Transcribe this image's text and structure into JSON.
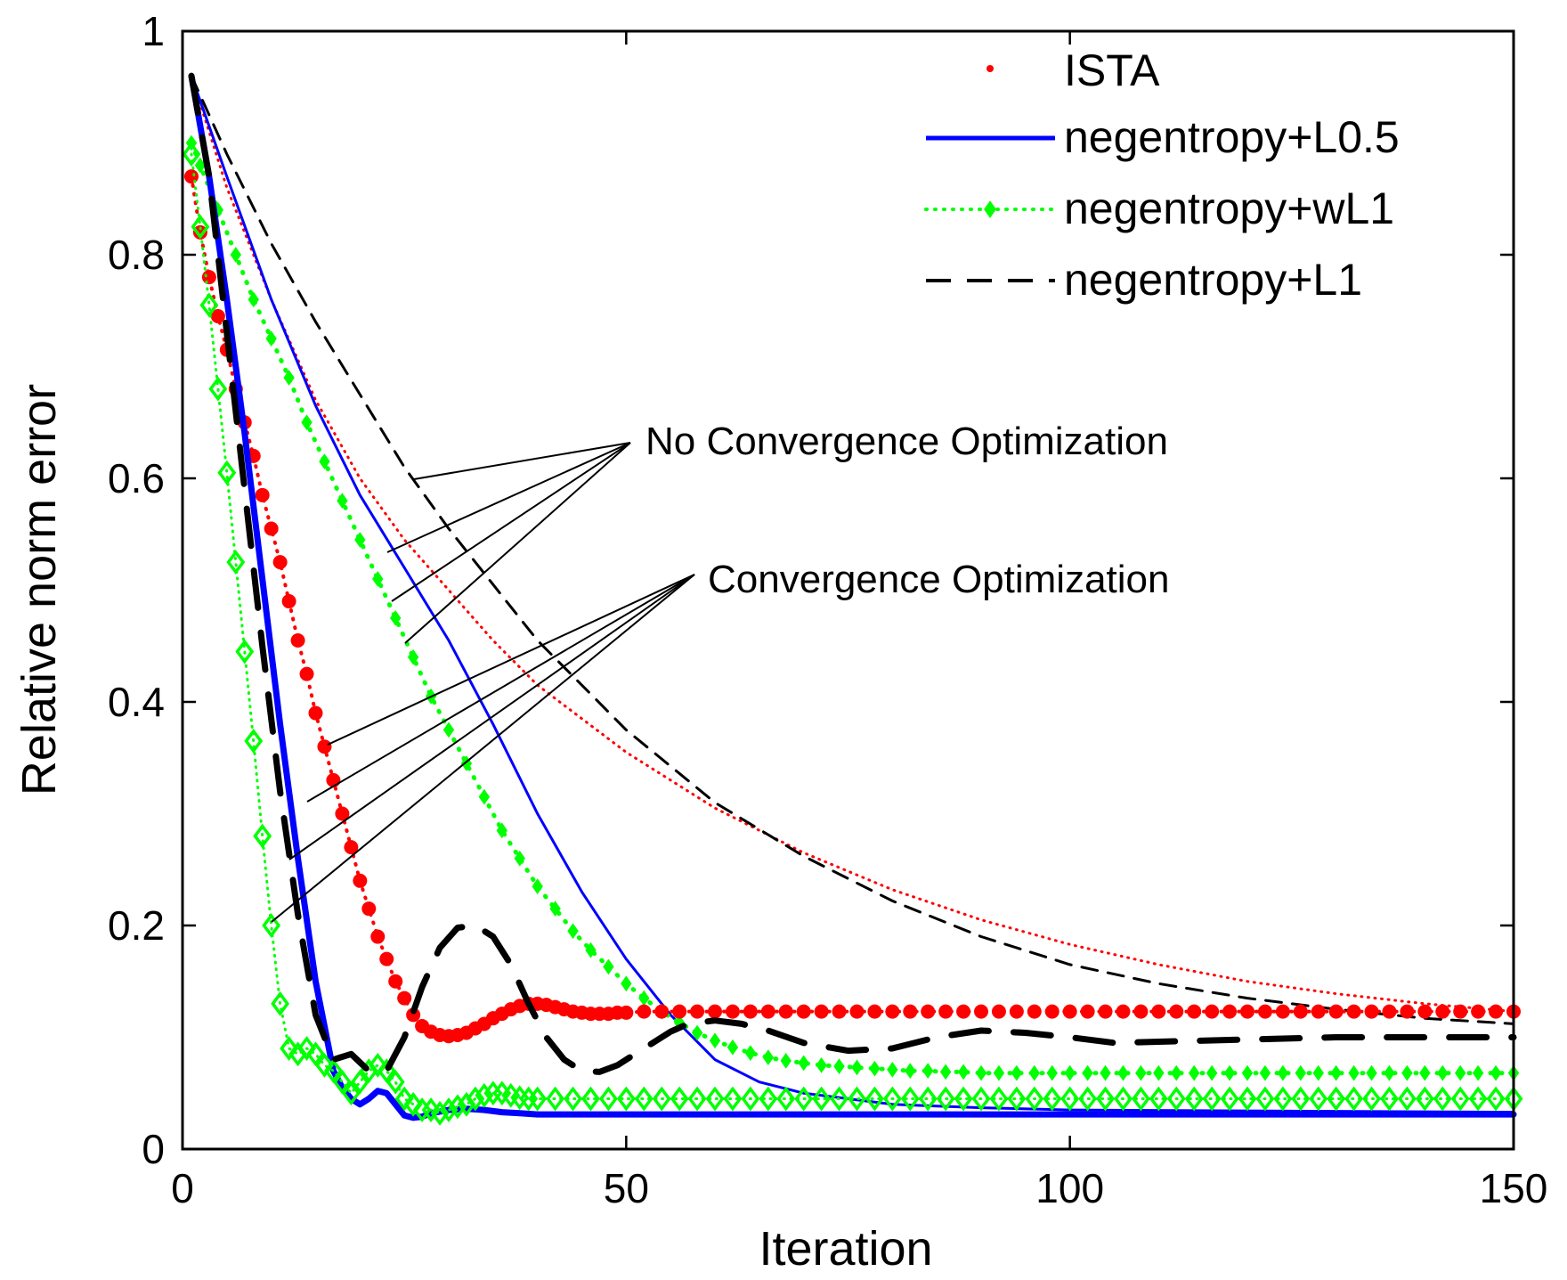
{
  "chart_data": {
    "type": "line",
    "title": "",
    "xlabel": "Iteration",
    "ylabel": "Relative norm error",
    "xlim": [
      0,
      150
    ],
    "ylim": [
      0,
      1
    ],
    "xticks": [
      0,
      50,
      100,
      150
    ],
    "yticks": [
      0,
      0.2,
      0.4,
      0.6,
      0.8,
      1
    ],
    "xtick_labels": [
      "0",
      "50",
      "100",
      "150"
    ],
    "ytick_labels": [
      "0",
      "0.2",
      "0.4",
      "0.6",
      "0.8",
      "1"
    ],
    "grid": false,
    "legend_position": "top-right",
    "legend": [
      {
        "name": "ISTA",
        "color": "#ff0000",
        "style": "dotted",
        "marker": "dot"
      },
      {
        "name": "negentropy+L0.5",
        "color": "#0000ff",
        "style": "solid",
        "marker": "none"
      },
      {
        "name": "negentropy+wL1",
        "color": "#00ff00",
        "style": "dotted",
        "marker": "diamond"
      },
      {
        "name": "negentropy+L1",
        "color": "#000000",
        "style": "dashed",
        "marker": "none"
      }
    ],
    "series": [
      {
        "name": "ISTA (no convergence optimization)",
        "legend_key": "ISTA",
        "color": "#ff0000",
        "style": "dotted",
        "width": 3,
        "x": [
          1,
          5,
          10,
          15,
          20,
          25,
          30,
          35,
          40,
          45,
          50,
          60,
          70,
          80,
          90,
          100,
          110,
          120,
          130,
          140,
          150
        ],
        "y": [
          0.96,
          0.86,
          0.76,
          0.67,
          0.6,
          0.545,
          0.5,
          0.455,
          0.415,
          0.385,
          0.355,
          0.305,
          0.265,
          0.232,
          0.205,
          0.183,
          0.165,
          0.15,
          0.139,
          0.13,
          0.123
        ]
      },
      {
        "name": "negentropy+L0.5 (no convergence optimization)",
        "legend_key": "negentropy+L0.5",
        "color": "#0000ff",
        "style": "solid",
        "width": 3,
        "x": [
          1,
          5,
          10,
          15,
          20,
          25,
          30,
          35,
          40,
          45,
          50,
          55,
          60,
          65,
          70,
          75,
          80,
          90,
          100,
          150
        ],
        "y": [
          0.96,
          0.87,
          0.76,
          0.665,
          0.585,
          0.52,
          0.455,
          0.38,
          0.3,
          0.23,
          0.17,
          0.12,
          0.08,
          0.06,
          0.05,
          0.045,
          0.04,
          0.037,
          0.035,
          0.033
        ]
      },
      {
        "name": "negentropy+wL1 (no convergence optimization)",
        "legend_key": "negentropy+wL1",
        "color": "#00ff00",
        "style": "dotted",
        "width": 5,
        "marker": "diamond-filled",
        "marker_size": 8,
        "marker_every": 1,
        "x": [
          1,
          2,
          4,
          6,
          8,
          10,
          12,
          14,
          16,
          18,
          20,
          22,
          24,
          26,
          28,
          30,
          32,
          34,
          36,
          38,
          40,
          42,
          44,
          46,
          48,
          50,
          52,
          54,
          56,
          58,
          60,
          62,
          64,
          66,
          68,
          70,
          72,
          74,
          76,
          78,
          80,
          82,
          84,
          86,
          88,
          90,
          92,
          94,
          96,
          98,
          100,
          102,
          104,
          106,
          108,
          110,
          112,
          114,
          116,
          118,
          120,
          122,
          124,
          126,
          128,
          130,
          132,
          134,
          136,
          138,
          140,
          142,
          144,
          146,
          148,
          150
        ],
        "y": [
          0.9,
          0.88,
          0.84,
          0.8,
          0.76,
          0.725,
          0.69,
          0.65,
          0.615,
          0.58,
          0.545,
          0.51,
          0.475,
          0.44,
          0.405,
          0.375,
          0.345,
          0.315,
          0.285,
          0.26,
          0.235,
          0.215,
          0.195,
          0.178,
          0.163,
          0.148,
          0.135,
          0.123,
          0.113,
          0.104,
          0.097,
          0.091,
          0.086,
          0.082,
          0.079,
          0.077,
          0.075,
          0.074,
          0.073,
          0.072,
          0.071,
          0.07,
          0.07,
          0.069,
          0.069,
          0.068,
          0.068,
          0.068,
          0.068,
          0.068,
          0.068,
          0.068,
          0.068,
          0.068,
          0.068,
          0.068,
          0.068,
          0.068,
          0.068,
          0.068,
          0.068,
          0.068,
          0.068,
          0.068,
          0.068,
          0.068,
          0.068,
          0.068,
          0.068,
          0.068,
          0.068,
          0.068,
          0.068,
          0.068,
          0.068,
          0.068
        ]
      },
      {
        "name": "negentropy+L1 (no convergence optimization)",
        "legend_key": "negentropy+L1",
        "color": "#000000",
        "style": "dashed",
        "width": 3,
        "x": [
          1,
          5,
          10,
          15,
          20,
          25,
          30,
          35,
          40,
          45,
          50,
          60,
          70,
          80,
          90,
          100,
          110,
          120,
          130,
          140,
          150
        ],
        "y": [
          0.96,
          0.89,
          0.81,
          0.74,
          0.675,
          0.61,
          0.555,
          0.505,
          0.455,
          0.415,
          0.375,
          0.31,
          0.262,
          0.222,
          0.19,
          0.165,
          0.148,
          0.135,
          0.125,
          0.117,
          0.112
        ]
      },
      {
        "name": "ISTA (convergence optimization)",
        "legend_key": "ISTA",
        "color": "#ff0000",
        "style": "dotted",
        "width": 4,
        "marker": "dot-filled",
        "marker_size": 8,
        "marker_every": 1,
        "x": [
          1,
          2,
          3,
          4,
          5,
          6,
          7,
          8,
          9,
          10,
          11,
          12,
          13,
          14,
          15,
          16,
          17,
          18,
          19,
          20,
          21,
          22,
          23,
          24,
          25,
          26,
          27,
          28,
          29,
          30,
          31,
          32,
          33,
          34,
          35,
          36,
          37,
          38,
          39,
          40,
          41,
          42,
          43,
          44,
          45,
          46,
          47,
          48,
          49,
          50,
          52,
          54,
          56,
          58,
          60,
          62,
          64,
          66,
          68,
          70,
          72,
          74,
          76,
          78,
          80,
          82,
          84,
          86,
          88,
          90,
          92,
          94,
          96,
          98,
          100,
          102,
          104,
          106,
          108,
          110,
          112,
          114,
          116,
          118,
          120,
          122,
          124,
          126,
          128,
          130,
          132,
          134,
          136,
          138,
          140,
          142,
          144,
          146,
          148,
          150
        ],
        "y": [
          0.87,
          0.82,
          0.78,
          0.745,
          0.715,
          0.68,
          0.65,
          0.62,
          0.585,
          0.555,
          0.525,
          0.49,
          0.455,
          0.425,
          0.39,
          0.36,
          0.33,
          0.3,
          0.27,
          0.24,
          0.215,
          0.19,
          0.17,
          0.15,
          0.135,
          0.12,
          0.11,
          0.105,
          0.102,
          0.101,
          0.102,
          0.104,
          0.108,
          0.112,
          0.117,
          0.121,
          0.125,
          0.128,
          0.13,
          0.13,
          0.129,
          0.127,
          0.125,
          0.123,
          0.122,
          0.121,
          0.121,
          0.121,
          0.122,
          0.122,
          0.123,
          0.123,
          0.123,
          0.123,
          0.123,
          0.123,
          0.123,
          0.123,
          0.123,
          0.123,
          0.123,
          0.123,
          0.123,
          0.123,
          0.123,
          0.123,
          0.123,
          0.123,
          0.123,
          0.123,
          0.123,
          0.123,
          0.123,
          0.123,
          0.123,
          0.123,
          0.123,
          0.123,
          0.123,
          0.123,
          0.123,
          0.123,
          0.123,
          0.123,
          0.123,
          0.123,
          0.123,
          0.123,
          0.123,
          0.123,
          0.123,
          0.123,
          0.123,
          0.123,
          0.123,
          0.123,
          0.123,
          0.123,
          0.123,
          0.123
        ]
      },
      {
        "name": "negentropy+L0.5 (convergence optimization)",
        "legend_key": "negentropy+L0.5",
        "color": "#0000ff",
        "style": "solid",
        "width": 7,
        "x": [
          1,
          3,
          5,
          7,
          9,
          11,
          13,
          15,
          17,
          18,
          19,
          20,
          21,
          22,
          23,
          24,
          25,
          26,
          27,
          28,
          30,
          32,
          34,
          36,
          38,
          40,
          45,
          50,
          60,
          70,
          80,
          90,
          100,
          110,
          120,
          130,
          140,
          150
        ],
        "y": [
          0.96,
          0.87,
          0.76,
          0.64,
          0.51,
          0.38,
          0.26,
          0.15,
          0.07,
          0.055,
          0.045,
          0.04,
          0.045,
          0.052,
          0.05,
          0.04,
          0.03,
          0.028,
          0.029,
          0.032,
          0.035,
          0.036,
          0.035,
          0.033,
          0.032,
          0.031,
          0.031,
          0.031,
          0.031,
          0.031,
          0.031,
          0.031,
          0.031,
          0.031,
          0.031,
          0.031,
          0.031,
          0.031
        ]
      },
      {
        "name": "negentropy+wL1 (convergence optimization)",
        "legend_key": "negentropy+wL1",
        "color": "#00ff00",
        "style": "dotted",
        "width": 3,
        "marker": "diamond-open",
        "marker_size": 11,
        "marker_every": 1,
        "x": [
          1,
          2,
          3,
          4,
          5,
          6,
          7,
          8,
          9,
          10,
          11,
          12,
          13,
          14,
          15,
          16,
          17,
          18,
          19,
          20,
          21,
          22,
          23,
          24,
          25,
          26,
          27,
          28,
          29,
          30,
          31,
          32,
          33,
          34,
          35,
          36,
          37,
          38,
          39,
          40,
          42,
          44,
          46,
          48,
          50,
          52,
          54,
          56,
          58,
          60,
          62,
          64,
          66,
          68,
          70,
          72,
          74,
          76,
          78,
          80,
          82,
          84,
          86,
          88,
          90,
          92,
          94,
          96,
          98,
          100,
          102,
          104,
          106,
          108,
          110,
          112,
          114,
          116,
          118,
          120,
          122,
          124,
          126,
          128,
          130,
          132,
          134,
          136,
          138,
          140,
          142,
          144,
          146,
          148,
          150
        ],
        "y": [
          0.89,
          0.825,
          0.755,
          0.68,
          0.605,
          0.525,
          0.445,
          0.365,
          0.28,
          0.2,
          0.13,
          0.09,
          0.085,
          0.09,
          0.085,
          0.075,
          0.07,
          0.06,
          0.05,
          0.06,
          0.07,
          0.075,
          0.07,
          0.06,
          0.045,
          0.04,
          0.035,
          0.035,
          0.032,
          0.035,
          0.038,
          0.04,
          0.045,
          0.048,
          0.05,
          0.05,
          0.048,
          0.046,
          0.045,
          0.045,
          0.045,
          0.045,
          0.045,
          0.045,
          0.045,
          0.045,
          0.045,
          0.045,
          0.045,
          0.045,
          0.045,
          0.045,
          0.045,
          0.045,
          0.045,
          0.045,
          0.045,
          0.045,
          0.045,
          0.045,
          0.045,
          0.045,
          0.045,
          0.045,
          0.045,
          0.045,
          0.045,
          0.045,
          0.045,
          0.045,
          0.045,
          0.045,
          0.045,
          0.045,
          0.045,
          0.045,
          0.045,
          0.045,
          0.045,
          0.045,
          0.045,
          0.045,
          0.045,
          0.045,
          0.045,
          0.045,
          0.045,
          0.045,
          0.045,
          0.045,
          0.045,
          0.045,
          0.045,
          0.045,
          0.045
        ]
      },
      {
        "name": "negentropy+L1 (convergence optimization)",
        "legend_key": "negentropy+L1",
        "color": "#000000",
        "style": "dashed",
        "width": 7,
        "x": [
          1,
          3,
          5,
          7,
          9,
          11,
          13,
          15,
          17,
          19,
          21,
          23,
          25,
          27,
          29,
          31,
          33,
          35,
          37,
          39,
          41,
          43,
          45,
          47,
          49,
          51,
          53,
          55,
          57,
          60,
          63,
          66,
          70,
          75,
          80,
          85,
          90,
          95,
          100,
          105,
          110,
          120,
          130,
          140,
          150
        ],
        "y": [
          0.96,
          0.87,
          0.73,
          0.59,
          0.45,
          0.32,
          0.21,
          0.12,
          0.08,
          0.085,
          0.07,
          0.07,
          0.1,
          0.145,
          0.18,
          0.198,
          0.2,
          0.19,
          0.165,
          0.13,
          0.1,
          0.08,
          0.07,
          0.069,
          0.075,
          0.085,
          0.095,
          0.105,
          0.112,
          0.115,
          0.112,
          0.106,
          0.095,
          0.088,
          0.09,
          0.1,
          0.106,
          0.104,
          0.1,
          0.095,
          0.096,
          0.098,
          0.1,
          0.1,
          0.1
        ]
      }
    ],
    "annotations": [
      {
        "text": "No Convergence Optimization",
        "series_pointed": [
          "negentropy+L1",
          "ISTA",
          "negentropy+L0.5",
          "negentropy+wL1"
        ]
      },
      {
        "text": "Convergence Optimization",
        "series_pointed": [
          "ISTA",
          "negentropy+L0.5",
          "negentropy+L1",
          "negentropy+wL1"
        ]
      }
    ]
  }
}
